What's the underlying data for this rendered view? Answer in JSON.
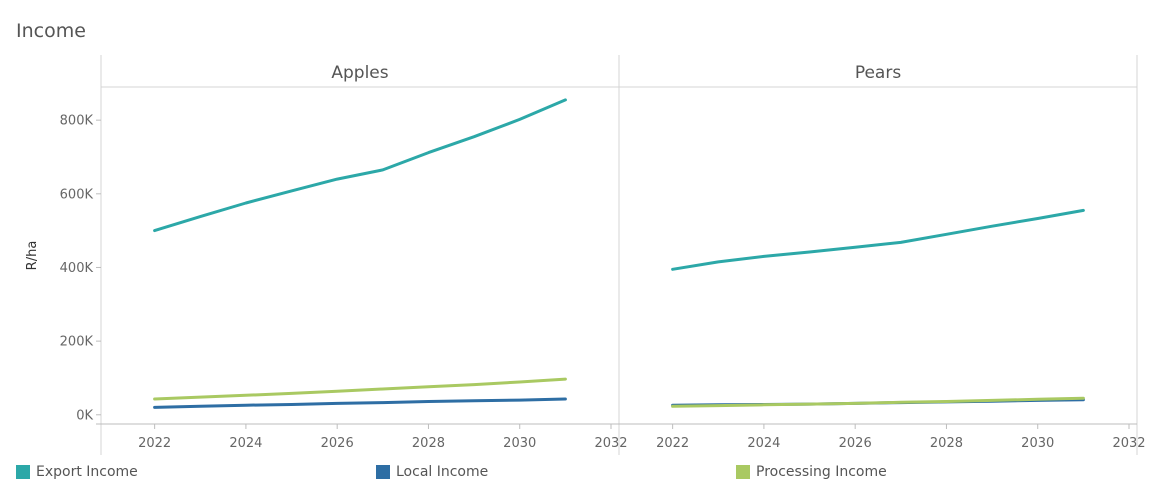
{
  "chart_data": {
    "type": "line",
    "title": "Income",
    "ylabel": "R/ha",
    "xlabel": "",
    "ylim": [
      -25000,
      890000
    ],
    "xlim": [
      2021,
      2032
    ],
    "yticks": [
      0,
      200000,
      400000,
      600000,
      800000
    ],
    "ytick_labels": [
      "0K",
      "200K",
      "400K",
      "600K",
      "800K"
    ],
    "xticks": [
      2022,
      2024,
      2026,
      2028,
      2030,
      2032
    ],
    "xtick_labels": [
      "2022",
      "2024",
      "2026",
      "2028",
      "2030",
      "2032"
    ],
    "x": [
      2022,
      2023,
      2024,
      2025,
      2026,
      2027,
      2028,
      2029,
      2030,
      2031
    ],
    "legend_position": "bottom",
    "colors": {
      "Export Income": "#2ca8a8",
      "Local Income": "#2e6ea4",
      "Processing Income": "#a9c962"
    },
    "panels": [
      {
        "name": "Apples",
        "series": [
          {
            "name": "Export Income",
            "values": [
              500000,
              538000,
              575000,
              608000,
              640000,
              665000,
              712000,
              755000,
              802000,
              855000
            ]
          },
          {
            "name": "Local Income",
            "values": [
              20000,
              23000,
              26000,
              28000,
              31000,
              33000,
              36000,
              38000,
              40000,
              43000
            ]
          },
          {
            "name": "Processing Income",
            "values": [
              43000,
              48000,
              53000,
              58000,
              64000,
              70000,
              76000,
              82000,
              89000,
              97000
            ]
          }
        ]
      },
      {
        "name": "Pears",
        "series": [
          {
            "name": "Export Income",
            "values": [
              395000,
              415000,
              430000,
              442000,
              455000,
              468000,
              490000,
              512000,
              533000,
              555000
            ]
          },
          {
            "name": "Local Income",
            "values": [
              26000,
              27000,
              28000,
              29000,
              31000,
              33000,
              35000,
              37000,
              39000,
              41000
            ]
          },
          {
            "name": "Processing Income",
            "values": [
              23000,
              25000,
              27000,
              29000,
              31000,
              34000,
              36000,
              39000,
              42000,
              45000
            ]
          }
        ]
      }
    ],
    "legend": [
      "Export Income",
      "Local Income",
      "Processing Income"
    ]
  }
}
